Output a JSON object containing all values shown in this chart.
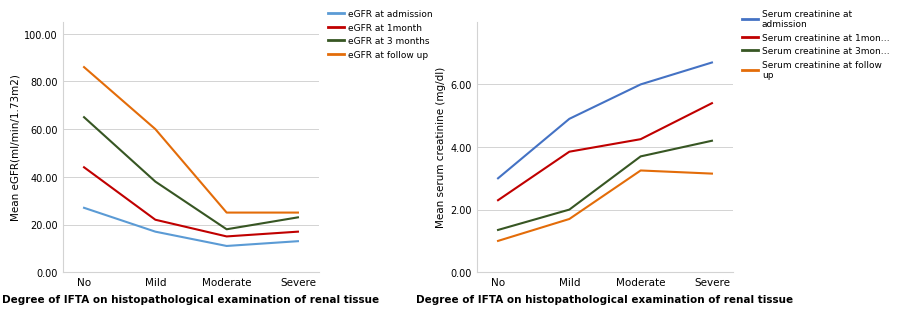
{
  "categories": [
    "No",
    "Mild",
    "Moderate",
    "Severe"
  ],
  "egfr": {
    "admission": [
      27,
      17,
      11,
      13
    ],
    "1month": [
      44,
      22,
      15,
      17
    ],
    "3months": [
      65,
      38,
      18,
      23
    ],
    "followup": [
      86,
      60,
      25,
      25
    ]
  },
  "creatinine": {
    "admission": [
      3.0,
      4.9,
      6.0,
      6.7
    ],
    "1month": [
      2.3,
      3.85,
      4.25,
      5.4
    ],
    "3months": [
      1.35,
      2.0,
      3.7,
      4.2
    ],
    "followup": [
      1.0,
      1.7,
      3.25,
      3.15
    ]
  },
  "egfr_colors": {
    "admission": "#5b9bd5",
    "1month": "#c00000",
    "3months": "#375623",
    "followup": "#e36c09"
  },
  "creatinine_colors": {
    "admission": "#4472c4",
    "1month": "#c00000",
    "3months": "#375623",
    "followup": "#e36c09"
  },
  "egfr_legend": [
    "eGFR at admission",
    "eGFR at 1month",
    "eGFR at 3 months",
    "eGFR at follow up"
  ],
  "creatinine_legend": [
    "Serum creatinine at\nadmission",
    "Serum creatinine at 1mon…",
    "Serum creatinine at 3mon…",
    "Serum creatinine at follow\nup"
  ],
  "egfr_ylabel": "Mean eGFR(ml/min/1.73m2)",
  "creatinine_ylabel": "Mean serum creatinine (mg/dl)",
  "xlabel": "Degree of IFTA on histopathological examination of renal tissue",
  "egfr_ylim": [
    0,
    105
  ],
  "creatinine_ylim": [
    0,
    8
  ],
  "egfr_yticks": [
    0.0,
    20.0,
    40.0,
    60.0,
    80.0,
    100.0
  ],
  "creatinine_yticks": [
    0.0,
    2.0,
    4.0,
    6.0
  ]
}
